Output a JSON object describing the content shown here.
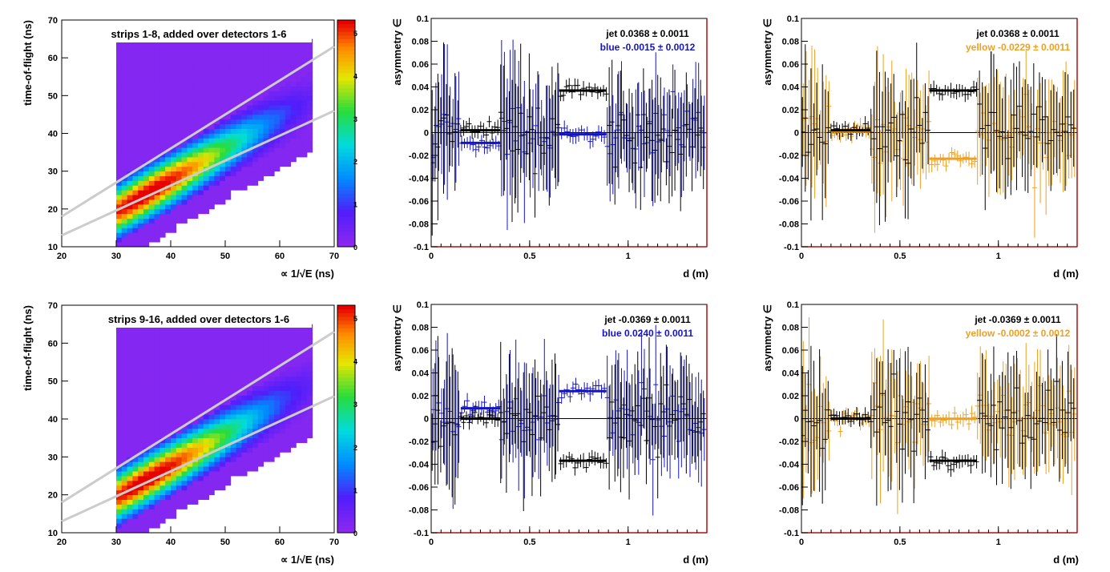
{
  "chart_data": [
    {
      "type": "heatmap",
      "annotation": "strips 1-8, added over detectors 1-6",
      "xlabel": "∝ 1/√E (ns)",
      "ylabel": "time-of-flight (ns)",
      "xlim": [
        20,
        70
      ],
      "ylim": [
        10,
        70
      ],
      "x_ticks": [
        "20",
        "30",
        "40",
        "50",
        "60",
        "70"
      ],
      "y_ticks": [
        "10",
        "20",
        "30",
        "40",
        "50",
        "60",
        "70"
      ],
      "colorbar_ticks": [
        "0",
        "1",
        "2",
        "3",
        "4",
        "5"
      ],
      "peak": {
        "x": 35,
        "y": 27
      },
      "band_lines": [
        {
          "x": [
            20,
            70
          ],
          "y": [
            18,
            63
          ]
        },
        {
          "x": [
            20,
            70
          ],
          "y": [
            13,
            46
          ]
        }
      ]
    },
    {
      "type": "scatter",
      "xlabel": "d (m)",
      "ylabel": "asymmetry ∈",
      "xlim": [
        0,
        1.4
      ],
      "ylim": [
        -0.1,
        0.1
      ],
      "x_ticks": [
        "0",
        "0.5",
        "1"
      ],
      "y_ticks": [
        "-0.1",
        "-0.08",
        "-0.06",
        "-0.04",
        "-0.02",
        "0",
        "0.02",
        "0.04",
        "0.06",
        "0.08",
        "0.1"
      ],
      "legend": [
        {
          "name": "jet",
          "text": "jet  0.0368 ± 0.0011",
          "color": "#000000"
        },
        {
          "name": "blue",
          "text": "blue -0.0015 ± 0.0012",
          "color": "#1515c8"
        }
      ],
      "series": [
        {
          "name": "jet",
          "color": "#000000",
          "fits": [
            {
              "x": [
                0.15,
                0.35
              ],
              "y": 0.002
            },
            {
              "x": [
                0.65,
                0.89
              ],
              "y": 0.0368
            }
          ]
        },
        {
          "name": "blue",
          "color": "#1515c8",
          "fits": [
            {
              "x": [
                0.15,
                0.35
              ],
              "y": -0.009
            },
            {
              "x": [
                0.65,
                0.89
              ],
              "y": -0.0015
            }
          ]
        }
      ]
    },
    {
      "type": "scatter",
      "xlabel": "d (m)",
      "ylabel": "asymmetry ∈",
      "xlim": [
        0,
        1.4
      ],
      "ylim": [
        -0.1,
        0.1
      ],
      "x_ticks": [
        "0",
        "0.5",
        "1"
      ],
      "y_ticks": [
        "-0.1",
        "-0.08",
        "-0.06",
        "-0.04",
        "-0.02",
        "0",
        "0.02",
        "0.04",
        "0.06",
        "0.08",
        "0.1"
      ],
      "legend": [
        {
          "name": "jet",
          "text": "jet  0.0368 ± 0.0011",
          "color": "#000000"
        },
        {
          "name": "yellow",
          "text": "yellow -0.0229 ± 0.0011",
          "color": "#f0a020"
        }
      ],
      "series": [
        {
          "name": "jet",
          "color": "#000000",
          "fits": [
            {
              "x": [
                0.15,
                0.35
              ],
              "y": 0.002
            },
            {
              "x": [
                0.65,
                0.89
              ],
              "y": 0.0368
            }
          ]
        },
        {
          "name": "yellow",
          "color": "#f0a020",
          "fits": [
            {
              "x": [
                0.15,
                0.35
              ],
              "y": 0.001
            },
            {
              "x": [
                0.65,
                0.89
              ],
              "y": -0.0229
            }
          ]
        }
      ]
    },
    {
      "type": "heatmap",
      "annotation": "strips 9-16, added over detectors 1-6",
      "xlabel": "∝ 1/√E (ns)",
      "ylabel": "time-of-flight (ns)",
      "xlim": [
        20,
        70
      ],
      "ylim": [
        10,
        70
      ],
      "x_ticks": [
        "20",
        "30",
        "40",
        "50",
        "60",
        "70"
      ],
      "y_ticks": [
        "10",
        "20",
        "30",
        "40",
        "50",
        "60",
        "70"
      ],
      "colorbar_ticks": [
        "0",
        "1",
        "2",
        "3",
        "4",
        "5"
      ],
      "peak": {
        "x": 35,
        "y": 26
      },
      "band_lines": [
        {
          "x": [
            20,
            70
          ],
          "y": [
            18,
            63
          ]
        },
        {
          "x": [
            20,
            70
          ],
          "y": [
            13,
            46
          ]
        }
      ]
    },
    {
      "type": "scatter",
      "xlabel": "d (m)",
      "ylabel": "asymmetry ∈",
      "xlim": [
        0,
        1.4
      ],
      "ylim": [
        -0.1,
        0.1
      ],
      "x_ticks": [
        "0",
        "0.5",
        "1"
      ],
      "y_ticks": [
        "-0.1",
        "-0.08",
        "-0.06",
        "-0.04",
        "-0.02",
        "0",
        "0.02",
        "0.04",
        "0.06",
        "0.08",
        "0.1"
      ],
      "legend": [
        {
          "name": "jet",
          "text": "jet -0.0369 ± 0.0011",
          "color": "#000000"
        },
        {
          "name": "blue",
          "text": "blue  0.0240 ± 0.0011",
          "color": "#1515c8"
        }
      ],
      "series": [
        {
          "name": "jet",
          "color": "#000000",
          "fits": [
            {
              "x": [
                0.15,
                0.35
              ],
              "y": 0.0
            },
            {
              "x": [
                0.65,
                0.89
              ],
              "y": -0.0369
            }
          ]
        },
        {
          "name": "blue",
          "color": "#1515c8",
          "fits": [
            {
              "x": [
                0.15,
                0.35
              ],
              "y": 0.009
            },
            {
              "x": [
                0.65,
                0.89
              ],
              "y": 0.024
            }
          ]
        }
      ]
    },
    {
      "type": "scatter",
      "xlabel": "d (m)",
      "ylabel": "asymmetry ∈",
      "xlim": [
        0,
        1.4
      ],
      "ylim": [
        -0.1,
        0.1
      ],
      "x_ticks": [
        "0",
        "0.5",
        "1"
      ],
      "y_ticks": [
        "-0.1",
        "-0.08",
        "-0.06",
        "-0.04",
        "-0.02",
        "0",
        "0.02",
        "0.04",
        "0.06",
        "0.08",
        "0.1"
      ],
      "legend": [
        {
          "name": "jet",
          "text": "jet -0.0369 ± 0.0011",
          "color": "#000000"
        },
        {
          "name": "yellow",
          "text": "yellow -0.0002 ± 0.0012",
          "color": "#f0a020"
        }
      ],
      "series": [
        {
          "name": "jet",
          "color": "#000000",
          "fits": [
            {
              "x": [
                0.15,
                0.35
              ],
              "y": 0.0
            },
            {
              "x": [
                0.65,
                0.89
              ],
              "y": -0.0369
            }
          ]
        },
        {
          "name": "yellow",
          "color": "#f0a020",
          "fits": [
            {
              "x": [
                0.15,
                0.35
              ],
              "y": 0.0
            },
            {
              "x": [
                0.65,
                0.89
              ],
              "y": -0.0002
            }
          ]
        }
      ]
    }
  ]
}
